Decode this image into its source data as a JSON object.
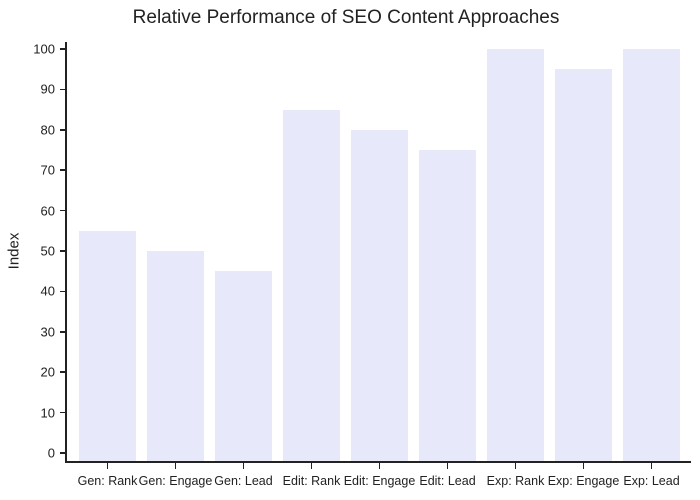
{
  "chart_data": {
    "type": "bar",
    "title": "Relative Performance of SEO Content Approaches",
    "xlabel": "",
    "ylabel": "Index",
    "categories": [
      "Gen: Rank",
      "Gen: Engage",
      "Gen: Lead",
      "Edit: Rank",
      "Edit: Engage",
      "Edit: Lead",
      "Exp: Rank",
      "Exp: Engage",
      "Exp: Lead"
    ],
    "values": [
      55,
      50,
      45,
      85,
      80,
      75,
      100,
      95,
      100
    ],
    "ylim": [
      0,
      100
    ],
    "yticks": [
      0,
      10,
      20,
      30,
      40,
      50,
      60,
      70,
      80,
      90,
      100
    ],
    "grid": false,
    "legend": null,
    "bar_color": "#e8e8fb"
  }
}
